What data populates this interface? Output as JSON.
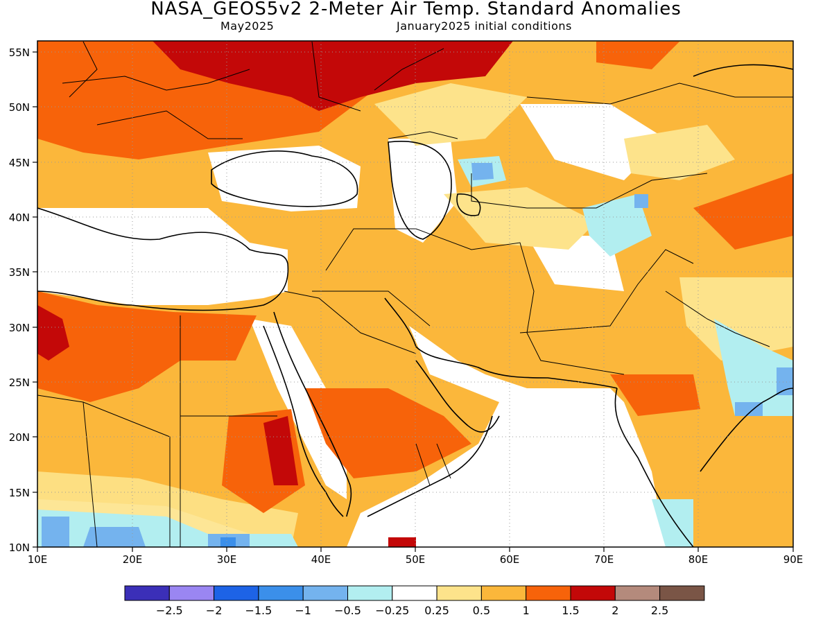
{
  "header": {
    "title": "NASA_GEOS5v2 2-Meter Air Temp. Standard Anomalies",
    "month": "May2025",
    "initial_conditions": "January2025 initial conditions"
  },
  "map": {
    "lon_range": [
      10,
      90
    ],
    "lat_range": [
      10,
      56
    ],
    "lon_ticks": [
      "10E",
      "20E",
      "30E",
      "40E",
      "50E",
      "60E",
      "70E",
      "80E",
      "90E"
    ],
    "lat_ticks": [
      "10N",
      "15N",
      "20N",
      "25N",
      "30N",
      "35N",
      "40N",
      "45N",
      "50N",
      "55N"
    ]
  },
  "colorbar": {
    "colors": [
      "#3b2fb8",
      "#9a86f2",
      "#1d63e6",
      "#3b8fea",
      "#74b3ee",
      "#b2eef0",
      "#ffffff",
      "#fde38b",
      "#fbb73b",
      "#f7630a",
      "#c30808",
      "#b48a7c",
      "#7a5546"
    ],
    "labels": [
      "−2.5",
      "−2",
      "−1.5",
      "−1",
      "−0.5",
      "−0.25",
      "0.25",
      "0.5",
      "1",
      "1.5",
      "2",
      "2.5"
    ]
  }
}
